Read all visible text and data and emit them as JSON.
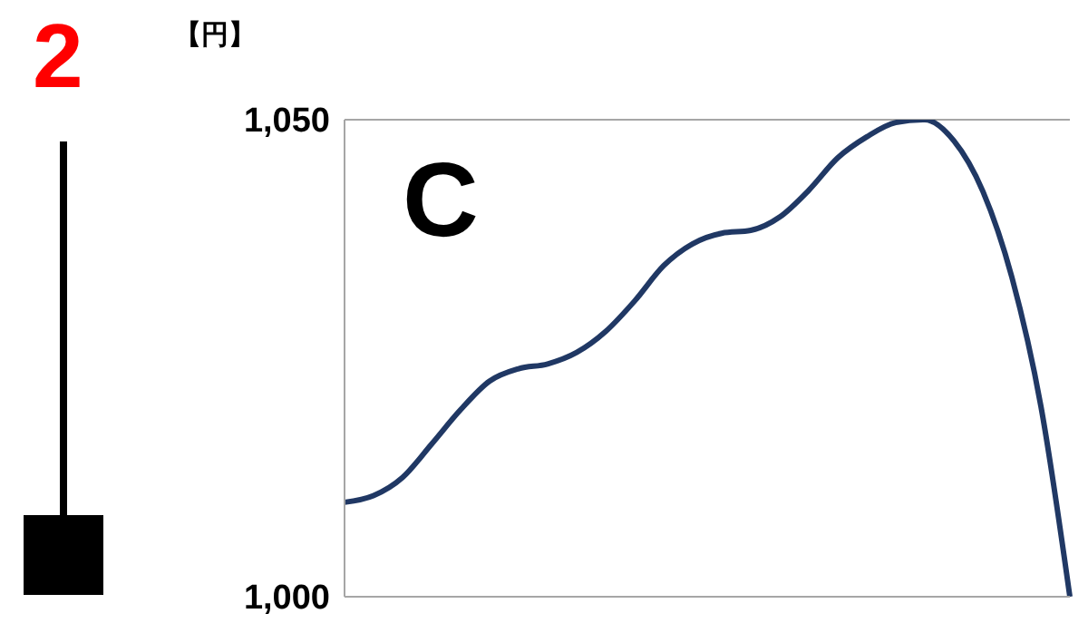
{
  "chart_data": {
    "type": "line",
    "ylabel": "【円】",
    "annotations": [
      "2",
      "C"
    ],
    "categories": [
      null,
      null,
      null,
      null,
      null,
      null,
      null,
      null,
      null,
      null,
      null,
      null,
      null,
      null,
      null,
      null,
      null,
      null,
      null,
      null,
      null,
      null,
      null,
      null,
      null,
      null
    ],
    "series": [
      {
        "color": "#203864",
        "values": [
          1009.9,
          1010.6,
          1012.5,
          1016,
          1019.6,
          1022.6,
          1023.9,
          1024.4,
          1025.6,
          1027.8,
          1031,
          1034.7,
          1037,
          1038.1,
          1038.4,
          1039.8,
          1042.6,
          1046,
          1048.2,
          1049.7,
          1050,
          1047.8,
          1042.5,
          1033.5,
          1020,
          1000
        ]
      }
    ],
    "ylim": [
      1000,
      1050
    ],
    "yticks": [
      {
        "value": 1000,
        "label": "1,000"
      },
      {
        "value": 1050,
        "label": "1,050"
      }
    ],
    "grid": "y",
    "tick_labels": "y",
    "legend": false,
    "marker": "none",
    "line_style": "solid"
  }
}
